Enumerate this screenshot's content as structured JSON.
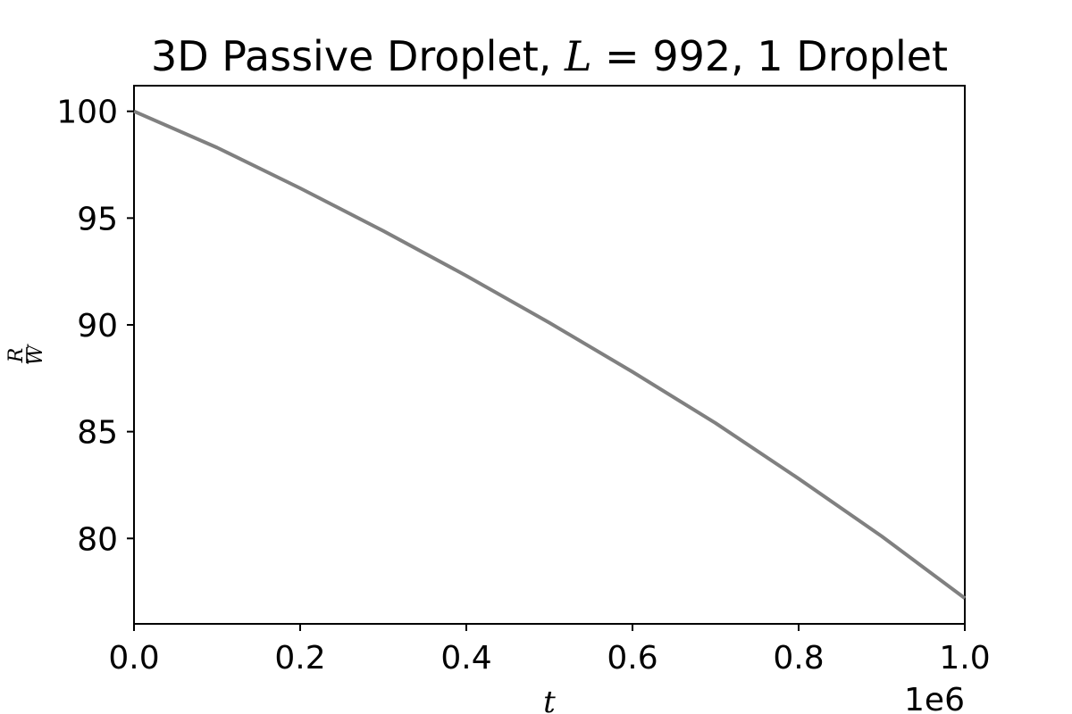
{
  "chart_data": {
    "type": "line",
    "title_prefix": "3D Passive Droplet, ",
    "title_var": "L",
    "title_eq": " = 992",
    "title_suffix": ", 1 Droplet",
    "xlabel": "t",
    "ylabel_num": "R",
    "ylabel_den": "W",
    "x_offset_label": "1e6",
    "xlim": [
      0,
      1.0
    ],
    "ylim": [
      76,
      101.2
    ],
    "x_ticks": [
      0.0,
      0.2,
      0.4,
      0.6,
      0.8,
      1.0
    ],
    "x_tick_labels": [
      "0.0",
      "0.2",
      "0.4",
      "0.6",
      "0.8",
      "1.0"
    ],
    "y_ticks": [
      80,
      85,
      90,
      95,
      100
    ],
    "y_tick_labels": [
      "80",
      "85",
      "90",
      "95",
      "100"
    ],
    "grid": false,
    "series": [
      {
        "color": "#808080",
        "x": [
          0.0,
          0.1,
          0.2,
          0.3,
          0.4,
          0.5,
          0.6,
          0.7,
          0.8,
          0.9,
          1.0
        ],
        "y": [
          100.0,
          98.3,
          96.4,
          94.4,
          92.3,
          90.1,
          87.8,
          85.4,
          82.8,
          80.1,
          77.2
        ]
      }
    ]
  }
}
